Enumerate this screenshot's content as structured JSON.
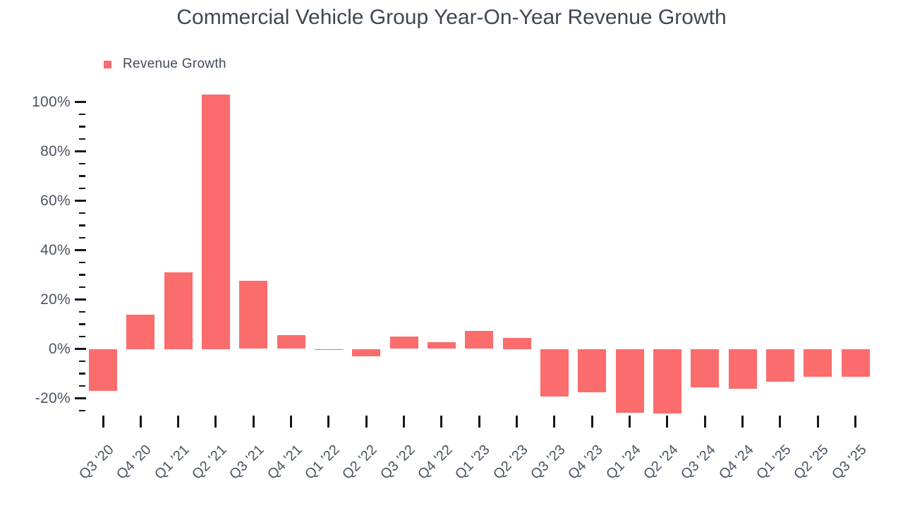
{
  "title": "Commercial Vehicle Group Year-On-Year Revenue Growth",
  "legend": {
    "label": "Revenue Growth"
  },
  "colors": {
    "bar": "#fb6c6c",
    "title_text": "#3e4755",
    "axis_text": "#4b5464",
    "tick": "#14181f",
    "background": "#ffffff"
  },
  "chart_data": {
    "type": "bar",
    "title": "Commercial Vehicle Group Year-On-Year Revenue Growth",
    "legend_entries": [
      "Revenue Growth"
    ],
    "legend_position": "top-left",
    "grid": false,
    "xlabel": "",
    "ylabel": "",
    "categories": [
      "Q3 '20",
      "Q4 '20",
      "Q1 '21",
      "Q2 '21",
      "Q3 '21",
      "Q4 '21",
      "Q1 '22",
      "Q2 '22",
      "Q3 '22",
      "Q4 '22",
      "Q1 '23",
      "Q2 '23",
      "Q3 '23",
      "Q4 '23",
      "Q1 '24",
      "Q2 '24",
      "Q3 '24",
      "Q4 '24",
      "Q1 '25",
      "Q2 '25",
      "Q3 '25"
    ],
    "values": [
      -17,
      14,
      31,
      103,
      27.6,
      5.6,
      -0.4,
      -2.9,
      4.9,
      2.6,
      7.3,
      4.5,
      -19.4,
      -17.6,
      -25.8,
      -26,
      -15.5,
      -16,
      -13.3,
      -11.2,
      -11.2
    ],
    "value_unit": "%",
    "y_axis": {
      "major_ticks": [
        100,
        80,
        60,
        40,
        20,
        0,
        -20
      ],
      "major_tick_labels": [
        "100%",
        "80%",
        "60%",
        "40%",
        "20%",
        "0%",
        "-20%"
      ],
      "minor_tick_step": 5,
      "range": [
        -27,
        104
      ]
    }
  }
}
